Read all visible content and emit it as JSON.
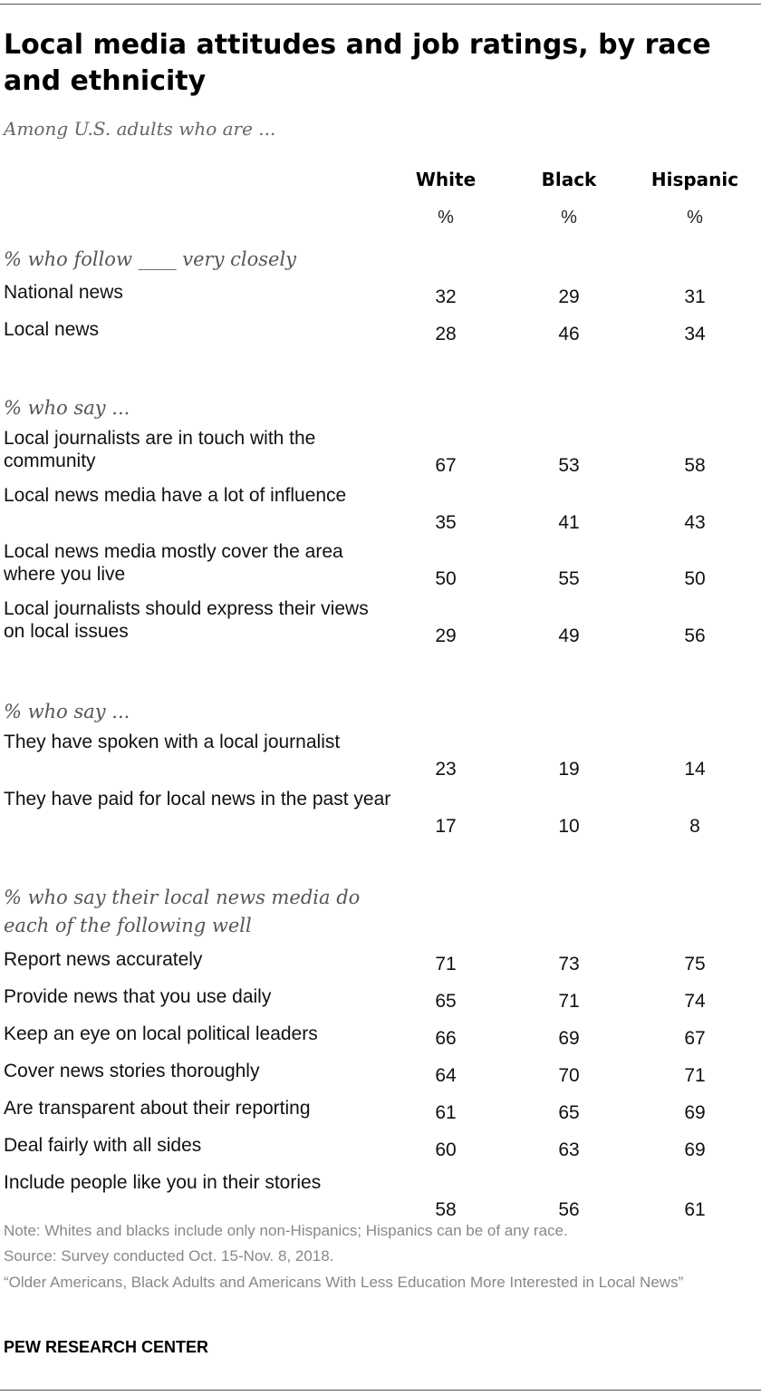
{
  "chart_data": {
    "type": "table",
    "title": "Local media attitudes and job ratings, by race and ethnicity",
    "subtitle": "Among U.S. adults who are ...",
    "columns": [
      "White",
      "Black",
      "Hispanic"
    ],
    "unit_row": [
      "%",
      "%",
      "%"
    ],
    "sections": [
      {
        "heading": "% who follow ____ very closely",
        "rows": [
          {
            "label": "National news",
            "values": [
              32,
              29,
              31
            ]
          },
          {
            "label": "Local news",
            "values": [
              28,
              46,
              34
            ]
          }
        ]
      },
      {
        "heading": "% who say ...",
        "rows": [
          {
            "label": "Local journalists are in touch with the community",
            "values": [
              67,
              53,
              58
            ]
          },
          {
            "label": "Local news media have a lot of influence",
            "values": [
              35,
              41,
              43
            ]
          },
          {
            "label": "Local news media mostly cover the area where you live",
            "values": [
              50,
              55,
              50
            ]
          },
          {
            "label": "Local journalists should express their views on local issues",
            "values": [
              29,
              49,
              56
            ]
          }
        ]
      },
      {
        "heading": "% who say ...",
        "rows": [
          {
            "label": "They have spoken with a local journalist",
            "values": [
              23,
              19,
              14
            ]
          },
          {
            "label": "They have paid for local news in the past year",
            "values": [
              17,
              10,
              8
            ]
          }
        ]
      },
      {
        "heading": "% who say their local news media do each of the following well",
        "rows": [
          {
            "label": "Report news accurately",
            "values": [
              71,
              73,
              75
            ]
          },
          {
            "label": "Provide news that you use daily",
            "values": [
              65,
              71,
              74
            ]
          },
          {
            "label": "Keep an eye on local political leaders",
            "values": [
              66,
              69,
              67
            ]
          },
          {
            "label": "Cover news stories thoroughly",
            "values": [
              64,
              70,
              71
            ]
          },
          {
            "label": "Are transparent about their reporting",
            "values": [
              61,
              65,
              69
            ]
          },
          {
            "label": "Deal fairly with all sides",
            "values": [
              60,
              63,
              69
            ]
          },
          {
            "label": "Include people like you in their stories",
            "values": [
              58,
              56,
              61
            ]
          }
        ]
      }
    ]
  },
  "footer": {
    "note": "Note: Whites and blacks include only non-Hispanics; Hispanics can be of any race.",
    "source": "Source: Survey conducted Oct. 15-Nov. 8, 2018.",
    "report": "“Older Americans, Black Adults and Americans With Less Education More Interested in Local News”",
    "brand": "PEW RESEARCH CENTER"
  }
}
